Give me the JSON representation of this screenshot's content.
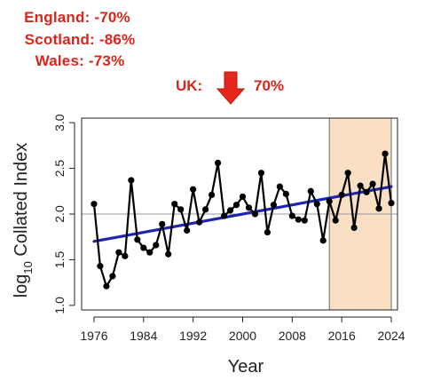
{
  "stats": {
    "england": "England: -70%",
    "scotland": "Scotland: -86%",
    "wales": "Wales: -73%"
  },
  "uk": {
    "label": "UK:",
    "value": "70%",
    "arrow_icon": "down-arrow-icon",
    "arrow_color": "#e8271c"
  },
  "colors": {
    "text_red": "#d9261c",
    "series": "#000000",
    "trend": "#1f24b4",
    "highlight": "#f9dfc4",
    "highlight_border": "#6e6e6e",
    "reference_line": "#9a9a9a"
  },
  "chart_data": {
    "type": "line",
    "xlabel": "Year",
    "ylabel_main": "log",
    "ylabel_sub": "10",
    "ylabel_rest": " Collated Index",
    "xlim": [
      1974,
      2025
    ],
    "ylim": [
      0.95,
      3.05
    ],
    "x_ticks": [
      1976,
      1984,
      1992,
      2000,
      2008,
      2016,
      2024
    ],
    "y_ticks": [
      1.0,
      1.5,
      2.0,
      2.5,
      3.0
    ],
    "y_tick_labels": [
      "1.0",
      "1.5",
      "2.0",
      "2.5",
      "3.0"
    ],
    "reference_line": 2.0,
    "highlight_range": [
      2014,
      2024
    ],
    "trend": {
      "x": [
        1976,
        2024
      ],
      "y": [
        1.7,
        2.3
      ]
    },
    "series": [
      {
        "x": [
          1976,
          1977,
          1978,
          1979,
          1980,
          1981,
          1982,
          1983,
          1984,
          1985,
          1986,
          1987,
          1988,
          1989,
          1990,
          1991,
          1992,
          1993,
          1994,
          1995,
          1996,
          1997,
          1998,
          1999,
          2000,
          2001,
          2002,
          2003,
          2004,
          2005,
          2006,
          2007,
          2008,
          2009,
          2010,
          2011,
          2012,
          2013,
          2014,
          2015,
          2016,
          2017,
          2018,
          2019,
          2020,
          2021,
          2022,
          2023,
          2024
        ],
        "y": [
          2.11,
          1.43,
          1.21,
          1.32,
          1.58,
          1.54,
          2.37,
          1.72,
          1.63,
          1.58,
          1.66,
          1.89,
          1.56,
          2.11,
          2.05,
          1.82,
          2.27,
          1.91,
          2.05,
          2.21,
          2.56,
          1.98,
          2.04,
          2.1,
          2.19,
          2.07,
          2.0,
          2.45,
          1.8,
          2.1,
          2.3,
          2.22,
          1.98,
          1.94,
          1.93,
          2.25,
          2.11,
          1.71,
          2.14,
          1.93,
          2.21,
          2.45,
          1.85,
          2.31,
          2.24,
          2.33,
          2.06,
          2.66,
          2.12
        ]
      }
    ]
  }
}
